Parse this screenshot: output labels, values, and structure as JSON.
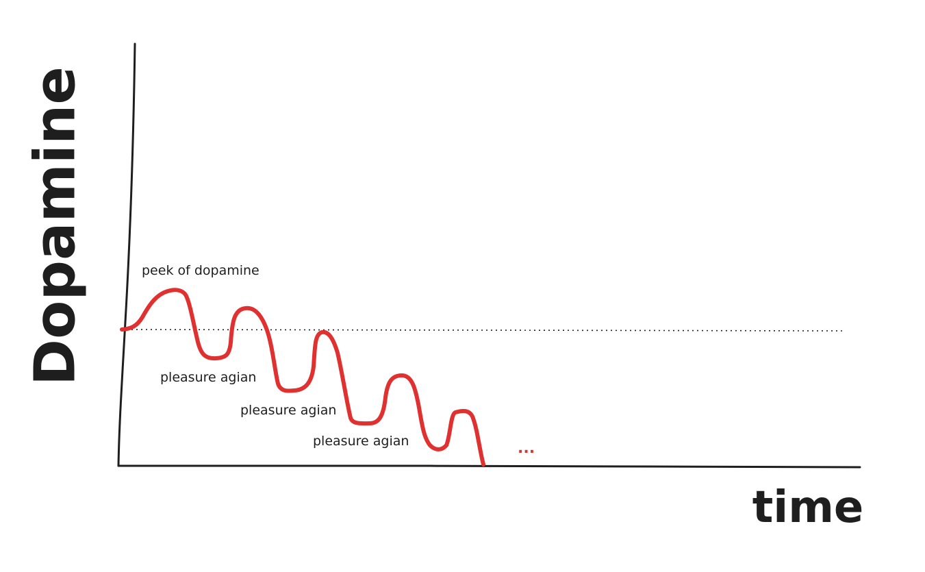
{
  "labels": {
    "y_axis": "Dopamine",
    "x_axis": "time",
    "peak": "peek of dopamine",
    "dip_1": "pleasure agian",
    "dip_2": "pleasure agian",
    "dip_3": "pleasure agian",
    "continuation": "..."
  },
  "colors": {
    "ink": "#1e1e1e",
    "curve": "#e03131",
    "ellipsis": "#e03131",
    "background": "#ffffff"
  }
}
